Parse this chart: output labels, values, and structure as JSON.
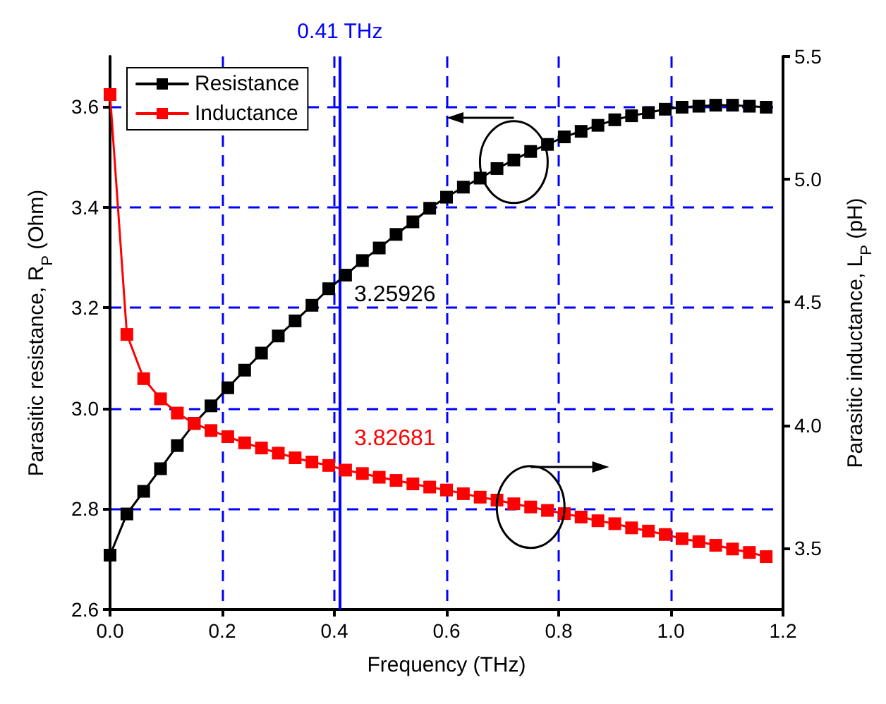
{
  "chart_data": {
    "type": "line",
    "xlabel": "Frequency (THz)",
    "ylabel": "Parasitic resistance, R$_{P}$ (Ohm)",
    "y2label": "Parasitic inductance, L$_{P}$ (pH)",
    "x": [
      0,
      0.03,
      0.06,
      0.09,
      0.12,
      0.15,
      0.18,
      0.21,
      0.24,
      0.27,
      0.3,
      0.33,
      0.36,
      0.39,
      0.42,
      0.45,
      0.48,
      0.51,
      0.54,
      0.57,
      0.6,
      0.63,
      0.66,
      0.69,
      0.72,
      0.75,
      0.78,
      0.81,
      0.84,
      0.87,
      0.9,
      0.93,
      0.96,
      0.99,
      1.02,
      1.05,
      1.08,
      1.11,
      1.14,
      1.17
    ],
    "series": [
      {
        "name": "Resistance",
        "color": "#000000",
        "values": [
          2.708,
          2.79,
          2.835,
          2.88,
          2.926,
          2.97,
          3.005,
          3.041,
          3.076,
          3.11,
          3.144,
          3.174,
          3.205,
          3.238,
          3.265,
          3.294,
          3.319,
          3.346,
          3.371,
          3.398,
          3.42,
          3.44,
          3.458,
          3.477,
          3.494,
          3.511,
          3.525,
          3.54,
          3.551,
          3.563,
          3.574,
          3.582,
          3.588,
          3.595,
          3.599,
          3.601,
          3.603,
          3.603,
          3.601,
          3.599
        ]
      },
      {
        "name": "Inductance",
        "color": "#ff0000",
        "axis": "y2",
        "values": [
          5.345,
          4.369,
          4.189,
          4.107,
          4.049,
          4.007,
          3.978,
          3.953,
          3.928,
          3.907,
          3.886,
          3.867,
          3.85,
          3.836,
          3.817,
          3.803,
          3.788,
          3.775,
          3.761,
          3.748,
          3.736,
          3.721,
          3.707,
          3.695,
          3.68,
          3.667,
          3.653,
          3.64,
          3.626,
          3.611,
          3.599,
          3.582,
          3.569,
          3.555,
          3.538,
          3.526,
          3.511,
          3.496,
          3.482,
          3.465
        ]
      }
    ],
    "xlim": [
      0,
      1.2
    ],
    "xticks": [
      {
        "value": 0,
        "label": "0.0"
      },
      0.2,
      0.4,
      0.6,
      0.8,
      {
        "value": 1,
        "label": "1.0"
      },
      1.2
    ],
    "ylim": [
      2.6,
      3.7
    ],
    "yticks": [
      2.6,
      2.8,
      {
        "value": 3,
        "label": "3.0"
      },
      3.2,
      3.4,
      3.6
    ],
    "y2lim": [
      3.25,
      5.5
    ],
    "y2ticks": [
      3.5,
      {
        "value": 4,
        "label": "4.0"
      },
      4.5,
      {
        "value": 5,
        "label": "5.0"
      },
      5.5
    ],
    "ref_lines": [
      {
        "axis": "x",
        "value": 0.41,
        "label": "0.41 THz",
        "color": "#0000ff"
      }
    ],
    "annotations": [
      "3.25926",
      "3.82681"
    ],
    "grid": true,
    "legend": "top left",
    "marker": "square",
    "line_style": "solid"
  }
}
